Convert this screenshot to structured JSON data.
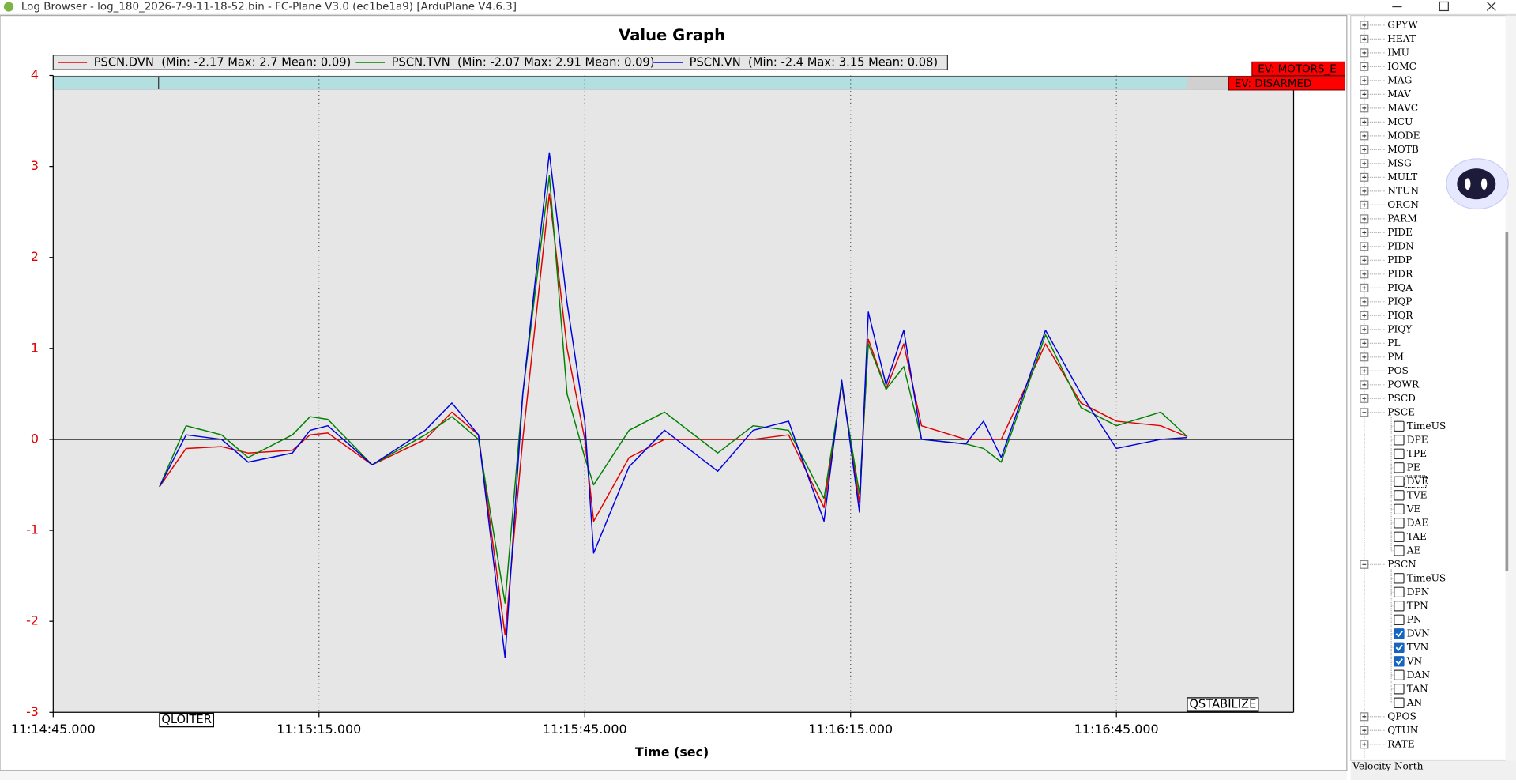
{
  "window": {
    "title": "Log Browser - log_180_2026-7-9-11-18-52.bin - FC-Plane V3.0 (ec1be1a9) [ArduPlane V4.6.3]"
  },
  "chart_data": {
    "type": "line",
    "title": "Value Graph",
    "x_label": "Time (sec)",
    "x": [
      40497,
      40500,
      40504,
      40507,
      40512,
      40514,
      40516,
      40521,
      40527,
      40530,
      40533,
      40536,
      40538,
      40541,
      40543,
      40545,
      40546,
      40550,
      40554,
      40560,
      40564,
      40568,
      40572,
      40574,
      40576,
      40577,
      40579,
      40581,
      40583,
      40588,
      40590,
      40592,
      40597,
      40601,
      40605,
      40610,
      40613
    ],
    "series": [
      {
        "name": "PSCN.DVN  (Min: -2.17 Max: 2.7 Mean: 0.09)",
        "color": "#e00000",
        "values": [
          -0.52,
          -0.1,
          -0.08,
          -0.15,
          -0.12,
          0.05,
          0.07,
          -0.28,
          0,
          0.3,
          0.05,
          -2.15,
          0,
          2.7,
          1,
          0,
          -0.9,
          -0.2,
          0,
          0,
          0,
          0.05,
          -0.75,
          0.6,
          -0.7,
          1.1,
          0.55,
          1.05,
          0.15,
          0,
          0,
          0,
          1.05,
          0.4,
          0.2,
          0.15,
          0.03
        ]
      },
      {
        "name": "PSCN.TVN  (Min: -2.07 Max: 2.91 Mean: 0.09)",
        "color": "#008000",
        "values": [
          -0.52,
          0.15,
          0.05,
          -0.2,
          0.05,
          0.25,
          0.22,
          -0.28,
          0.05,
          0.25,
          0,
          -1.8,
          0.5,
          2.9,
          0.5,
          -0.2,
          -0.5,
          0.1,
          0.3,
          -0.15,
          0.15,
          0.1,
          -0.65,
          0.6,
          -0.6,
          1.05,
          0.55,
          0.8,
          0,
          -0.05,
          -0.1,
          -0.25,
          1.15,
          0.35,
          0.15,
          0.3,
          0.03
        ]
      },
      {
        "name": "PSCN.VN  (Min: -2.4 Max: 3.15 Mean: 0.08)",
        "color": "#0000e0",
        "values": [
          -0.52,
          0.05,
          0,
          -0.25,
          -0.15,
          0.1,
          0.15,
          -0.28,
          0.1,
          0.4,
          0.05,
          -2.4,
          0.5,
          3.15,
          1.5,
          0.2,
          -1.25,
          -0.3,
          0.1,
          -0.35,
          0.1,
          0.2,
          -0.9,
          0.65,
          -0.8,
          1.4,
          0.6,
          1.2,
          0,
          -0.05,
          0.2,
          -0.2,
          1.2,
          0.5,
          -0.1,
          0,
          0.02
        ]
      }
    ],
    "xlim": [
      40485,
      40625
    ],
    "ylim": [
      -3,
      4
    ],
    "xticks": [
      {
        "value": 40485,
        "label": "11:14:45.000"
      },
      {
        "value": 40515,
        "label": "11:15:15.000"
      },
      {
        "value": 40545,
        "label": "11:15:45.000"
      },
      {
        "value": 40575,
        "label": "11:16:15.000"
      },
      {
        "value": 40605,
        "label": "11:16:45.000"
      }
    ],
    "yticks": [
      -3,
      -2,
      -1,
      0,
      1,
      2,
      3,
      4
    ],
    "grid": "x",
    "mode_labels": [
      {
        "text": "QLOITER",
        "x": 40497
      },
      {
        "text": "QSTABILIZE",
        "x": 40613
      }
    ],
    "events": [
      "EV: MOTORS_E",
      "EV: DISARMED"
    ]
  },
  "tree": {
    "items": [
      {
        "label": "GPYW"
      },
      {
        "label": "HEAT"
      },
      {
        "label": "IMU"
      },
      {
        "label": "IOMC"
      },
      {
        "label": "MAG"
      },
      {
        "label": "MAV"
      },
      {
        "label": "MAVC"
      },
      {
        "label": "MCU"
      },
      {
        "label": "MODE"
      },
      {
        "label": "MOTB"
      },
      {
        "label": "MSG"
      },
      {
        "label": "MULT"
      },
      {
        "label": "NTUN"
      },
      {
        "label": "ORGN"
      },
      {
        "label": "PARM"
      },
      {
        "label": "PIDE"
      },
      {
        "label": "PIDN"
      },
      {
        "label": "PIDP"
      },
      {
        "label": "PIDR"
      },
      {
        "label": "PIQA"
      },
      {
        "label": "PIQP"
      },
      {
        "label": "PIQR"
      },
      {
        "label": "PIQY"
      },
      {
        "label": "PL"
      },
      {
        "label": "PM"
      },
      {
        "label": "POS"
      },
      {
        "label": "POWR"
      },
      {
        "label": "PSCD"
      },
      {
        "label": "PSCE",
        "children": [
          {
            "label": "TimeUS",
            "checked": false
          },
          {
            "label": "DPE",
            "checked": false
          },
          {
            "label": "TPE",
            "checked": false
          },
          {
            "label": "PE",
            "checked": false
          },
          {
            "label": "DVE",
            "checked": false,
            "focused": true
          },
          {
            "label": "TVE",
            "checked": false
          },
          {
            "label": "VE",
            "checked": false
          },
          {
            "label": "DAE",
            "checked": false
          },
          {
            "label": "TAE",
            "checked": false
          },
          {
            "label": "AE",
            "checked": false
          }
        ]
      },
      {
        "label": "PSCN",
        "children": [
          {
            "label": "TimeUS",
            "checked": false
          },
          {
            "label": "DPN",
            "checked": false
          },
          {
            "label": "TPN",
            "checked": false
          },
          {
            "label": "PN",
            "checked": false
          },
          {
            "label": "DVN",
            "checked": true
          },
          {
            "label": "TVN",
            "checked": true
          },
          {
            "label": "VN",
            "checked": true
          },
          {
            "label": "DAN",
            "checked": false
          },
          {
            "label": "TAN",
            "checked": false
          },
          {
            "label": "AN",
            "checked": false
          }
        ]
      },
      {
        "label": "QPOS"
      },
      {
        "label": "QTUN"
      },
      {
        "label": "RATE"
      }
    ]
  },
  "status": "Velocity North"
}
